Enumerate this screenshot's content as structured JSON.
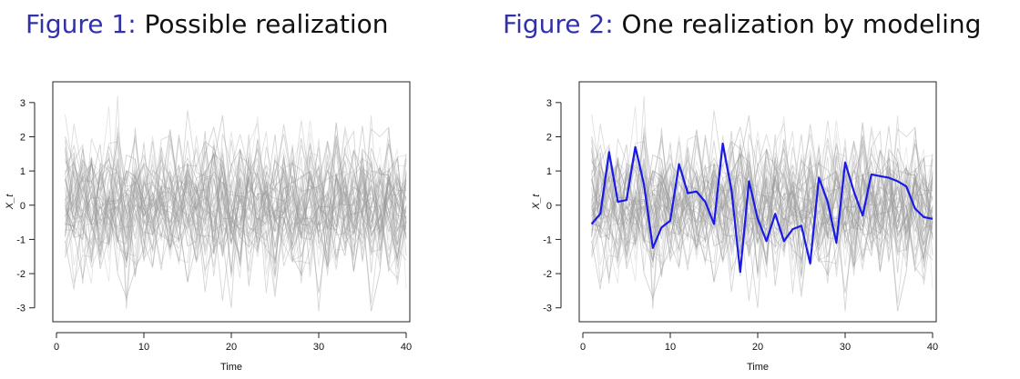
{
  "figures": [
    {
      "label": "Figure 1:",
      "caption": "Possible realization",
      "chart_data": {
        "type": "line",
        "xlabel": "Time",
        "ylabel": "X_t",
        "xlim": [
          0,
          40
        ],
        "ylim": [
          -3.3,
          3.5
        ],
        "x_ticks": [
          "0",
          "10",
          "20",
          "30",
          "40"
        ],
        "y_ticks": [
          "-3",
          "-2",
          "-1",
          "0",
          "1",
          "2",
          "3"
        ],
        "background_series": {
          "count": 50,
          "x_start": 1,
          "x_end": 40,
          "distribution": "white noise, mean 0, sd 1",
          "color": "#9a9a9a"
        },
        "highlight_series": null
      }
    },
    {
      "label": "Figure 2:",
      "caption": "One realization by modeling",
      "chart_data": {
        "type": "line",
        "xlabel": "Time",
        "ylabel": "X_t",
        "xlim": [
          0,
          40
        ],
        "ylim": [
          -3.3,
          3.5
        ],
        "x_ticks": [
          "0",
          "10",
          "20",
          "30",
          "40"
        ],
        "y_ticks": [
          "-3",
          "-2",
          "-1",
          "0",
          "1",
          "2",
          "3"
        ],
        "background_series": {
          "count": 50,
          "x_start": 1,
          "x_end": 40,
          "distribution": "white noise, mean 0, sd 1",
          "color": "#9a9a9a"
        },
        "highlight_series": {
          "color": "#1a1ae6",
          "x": [
            1,
            2,
            3,
            4,
            5,
            6,
            7,
            8,
            9,
            10,
            11,
            12,
            13,
            14,
            15,
            16,
            17,
            18,
            19,
            20,
            21,
            22,
            23,
            24,
            25,
            26,
            27,
            28,
            29,
            30,
            31,
            32,
            33,
            34,
            35,
            36,
            37,
            38,
            39,
            40
          ],
          "y": [
            -0.55,
            -0.25,
            1.55,
            0.1,
            0.15,
            1.7,
            0.6,
            -1.25,
            -0.65,
            -0.45,
            1.2,
            0.35,
            0.4,
            0.1,
            -0.55,
            1.8,
            0.45,
            -1.95,
            0.7,
            -0.4,
            -1.05,
            -0.25,
            -1.05,
            -0.7,
            -0.6,
            -1.7,
            0.8,
            0.1,
            -1.1,
            1.25,
            0.4,
            -0.3,
            0.9,
            0.85,
            0.8,
            0.7,
            0.55,
            -0.1,
            -0.35,
            -0.4
          ]
        }
      }
    }
  ],
  "colors": {
    "label_blue": "#3232a8",
    "caption_black": "#111111",
    "axis": "#222222"
  }
}
